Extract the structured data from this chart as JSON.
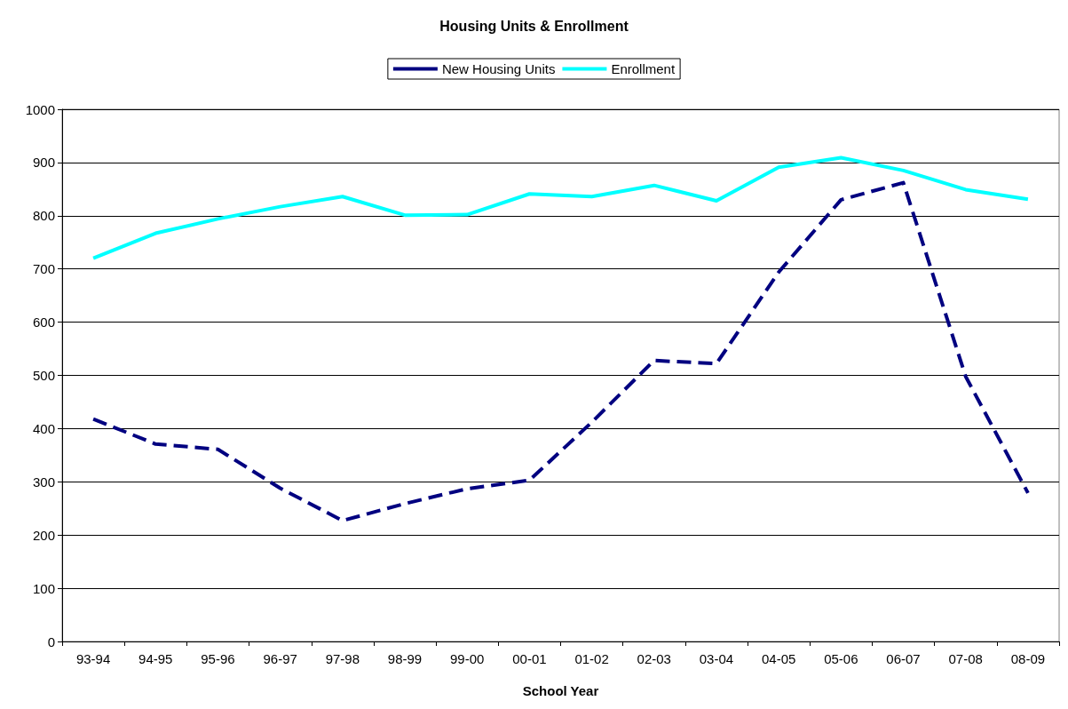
{
  "chart_data": {
    "type": "line",
    "title": "Housing Units & Enrollment",
    "xlabel": "School Year",
    "categories": [
      "93-94",
      "94-95",
      "95-96",
      "96-97",
      "97-98",
      "98-99",
      "99-00",
      "00-01",
      "01-02",
      "02-03",
      "03-04",
      "04-05",
      "05-06",
      "06-07",
      "07-08",
      "08-09"
    ],
    "series": [
      {
        "name": "New Housing Units",
        "color": "#000080",
        "line_style": "dashed",
        "values": [
          418,
          371,
          361,
          288,
          227,
          259,
          287,
          303,
          412,
          528,
          522,
          694,
          830,
          862,
          498,
          279
        ]
      },
      {
        "name": "Enrollment",
        "color": "#00ffff",
        "line_style": "solid",
        "values": [
          720,
          767,
          794,
          817,
          836,
          801,
          802,
          841,
          836,
          857,
          828,
          891,
          909,
          885,
          849,
          831
        ]
      }
    ],
    "ylim": [
      0,
      1000
    ],
    "yticks": [
      0,
      100,
      200,
      300,
      400,
      500,
      600,
      700,
      800,
      900,
      1000
    ],
    "grid": "y",
    "legend": "top",
    "marker": "none"
  }
}
